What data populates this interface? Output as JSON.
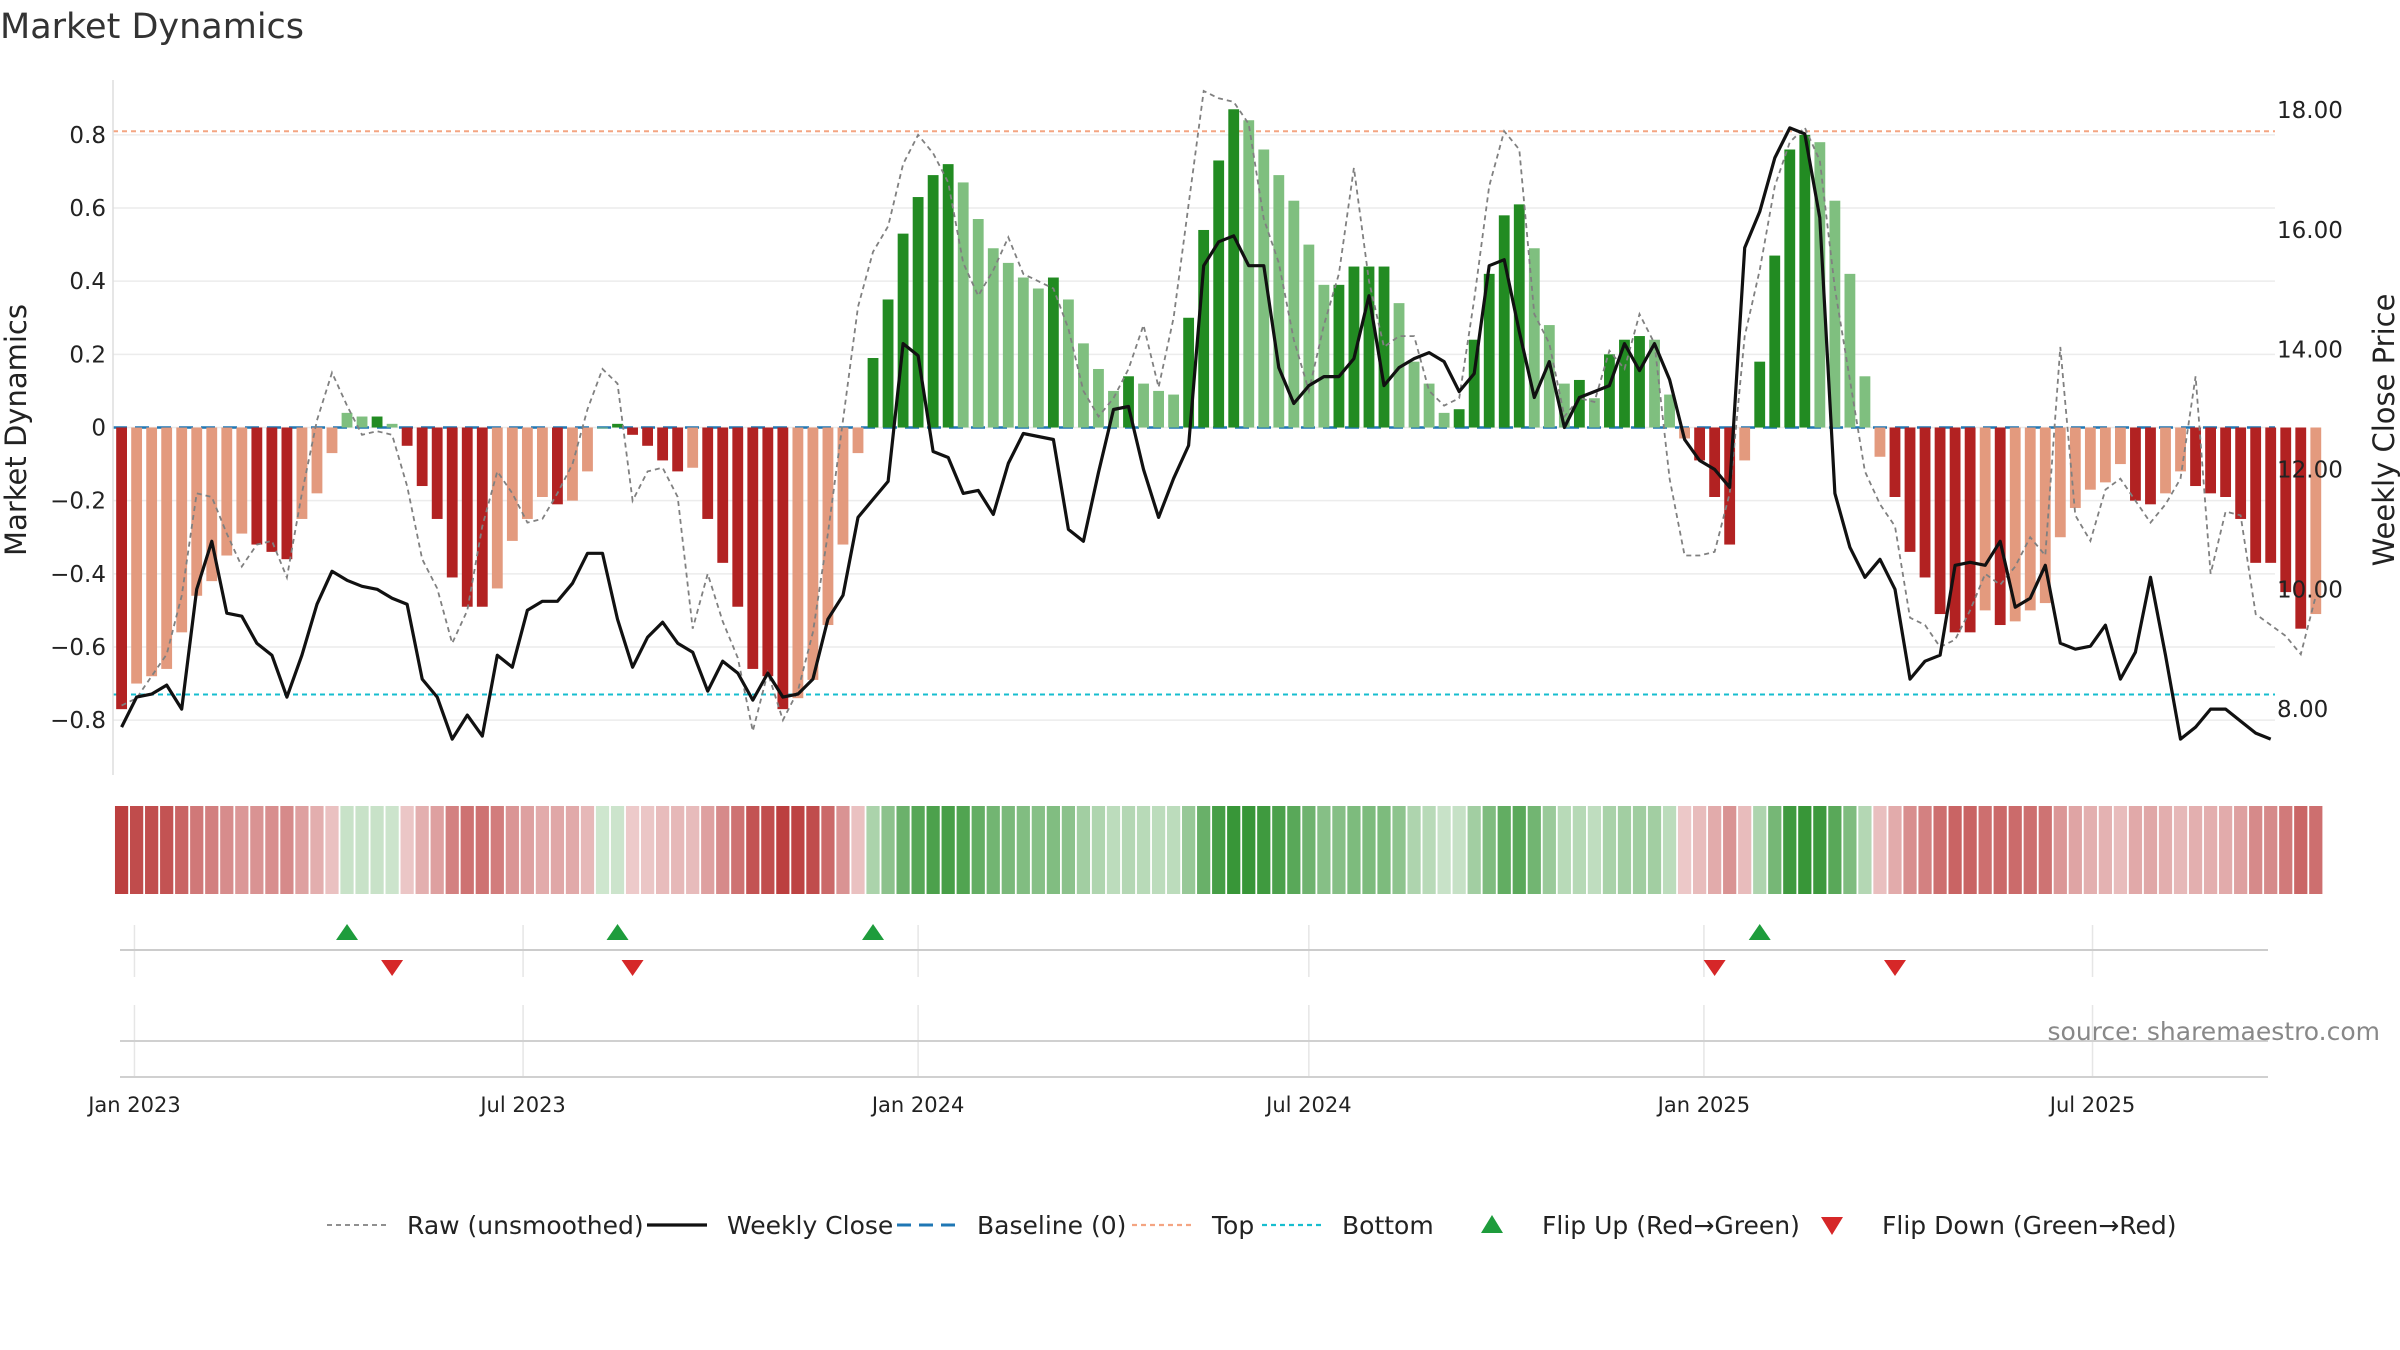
{
  "chart_data": {
    "type": "bar",
    "title": "Market Dynamics",
    "ylabel": "Market Dynamics",
    "y2label": "Weekly Close Price",
    "ylim": [
      -0.95,
      0.95
    ],
    "y2lim": [
      6.9,
      18.5
    ],
    "yticks": [
      "0.8",
      "0.6",
      "0.4",
      "0.2",
      "0",
      "−0.2",
      "−0.4",
      "−0.6",
      "−0.8"
    ],
    "y2ticks": [
      "18.00",
      "16.00",
      "14.00",
      "12.00",
      "10.00",
      "8.00"
    ],
    "x_start": "2022-12-26",
    "xlim": [
      "2022-12-22",
      "2025-09-24"
    ],
    "xtick_labels": [
      "Jan 2023",
      "Jul 2023",
      "Jan 2024",
      "Jul 2024",
      "Jan 2025",
      "Jul 2025"
    ],
    "xtick_dates": [
      "2023-01-01",
      "2023-07-01",
      "2024-01-01",
      "2024-07-01",
      "2025-01-01",
      "2025-07-01"
    ],
    "top_line": 0.81,
    "bottom_line": -0.73,
    "baseline": 0,
    "bar_values": [
      -0.77,
      -0.7,
      -0.68,
      -0.66,
      -0.56,
      -0.46,
      -0.42,
      -0.35,
      -0.29,
      -0.32,
      -0.34,
      -0.36,
      -0.25,
      -0.18,
      -0.07,
      0.04,
      0.03,
      0.03,
      0.01,
      -0.05,
      -0.16,
      -0.25,
      -0.41,
      -0.49,
      -0.49,
      -0.44,
      -0.31,
      -0.25,
      -0.19,
      -0.21,
      -0.2,
      -0.12,
      0.0,
      0.01,
      -0.02,
      -0.05,
      -0.09,
      -0.12,
      -0.11,
      -0.25,
      -0.37,
      -0.49,
      -0.66,
      -0.68,
      -0.77,
      -0.74,
      -0.69,
      -0.54,
      -0.32,
      -0.07,
      0.19,
      0.35,
      0.53,
      0.63,
      0.69,
      0.72,
      0.67,
      0.57,
      0.49,
      0.45,
      0.41,
      0.38,
      0.41,
      0.35,
      0.23,
      0.16,
      0.1,
      0.14,
      0.12,
      0.1,
      0.09,
      0.3,
      0.54,
      0.73,
      0.87,
      0.84,
      0.76,
      0.69,
      0.62,
      0.5,
      0.39,
      0.39,
      0.44,
      0.44,
      0.44,
      0.34,
      0.18,
      0.12,
      0.04,
      0.05,
      0.24,
      0.42,
      0.58,
      0.61,
      0.49,
      0.28,
      0.12,
      0.13,
      0.08,
      0.2,
      0.24,
      0.25,
      0.24,
      0.09,
      -0.03,
      -0.09,
      -0.19,
      -0.32,
      -0.09,
      0.18,
      0.47,
      0.76,
      0.8,
      0.78,
      0.62,
      0.42,
      0.14,
      -0.08,
      -0.19,
      -0.34,
      -0.41,
      -0.51,
      -0.56,
      -0.56,
      -0.5,
      -0.54,
      -0.53,
      -0.5,
      -0.48,
      -0.3,
      -0.22,
      -0.17,
      -0.15,
      -0.1,
      -0.2,
      -0.21,
      -0.18,
      -0.12,
      -0.16,
      -0.18,
      -0.19,
      -0.25,
      -0.37,
      -0.37,
      -0.45,
      -0.55,
      -0.51
    ],
    "raw_values": [
      -0.76,
      -0.74,
      -0.68,
      -0.62,
      -0.46,
      -0.18,
      -0.19,
      -0.29,
      -0.38,
      -0.32,
      -0.31,
      -0.41,
      -0.18,
      0.02,
      0.15,
      0.06,
      -0.02,
      -0.01,
      -0.02,
      -0.16,
      -0.36,
      -0.44,
      -0.59,
      -0.5,
      -0.27,
      -0.12,
      -0.18,
      -0.26,
      -0.25,
      -0.18,
      -0.1,
      0.05,
      0.16,
      0.12,
      -0.2,
      -0.12,
      -0.11,
      -0.19,
      -0.55,
      -0.4,
      -0.53,
      -0.63,
      -0.83,
      -0.67,
      -0.8,
      -0.72,
      -0.56,
      -0.29,
      0.02,
      0.33,
      0.48,
      0.55,
      0.72,
      0.8,
      0.75,
      0.67,
      0.45,
      0.36,
      0.43,
      0.52,
      0.42,
      0.4,
      0.38,
      0.27,
      0.1,
      0.03,
      0.08,
      0.16,
      0.28,
      0.11,
      0.3,
      0.61,
      0.92,
      0.9,
      0.89,
      0.83,
      0.57,
      0.45,
      0.24,
      0.1,
      0.28,
      0.42,
      0.71,
      0.4,
      0.22,
      0.25,
      0.25,
      0.1,
      0.06,
      0.08,
      0.35,
      0.66,
      0.81,
      0.76,
      0.31,
      0.23,
      0.03,
      0.08,
      0.07,
      0.21,
      0.16,
      0.31,
      0.23,
      -0.14,
      -0.35,
      -0.35,
      -0.34,
      -0.18,
      0.25,
      0.43,
      0.66,
      0.78,
      0.82,
      0.73,
      0.38,
      0.13,
      -0.12,
      -0.21,
      -0.27,
      -0.52,
      -0.54,
      -0.6,
      -0.58,
      -0.5,
      -0.4,
      -0.43,
      -0.38,
      -0.3,
      -0.35,
      0.22,
      -0.24,
      -0.31,
      -0.17,
      -0.14,
      -0.2,
      -0.26,
      -0.21,
      -0.14,
      0.14,
      -0.4,
      -0.23,
      -0.24,
      -0.51,
      -0.54,
      -0.57,
      -0.62,
      -0.46
    ],
    "close_values": [
      7.7,
      8.2,
      8.25,
      8.4,
      8.0,
      10.0,
      10.8,
      9.6,
      9.55,
      9.1,
      8.9,
      8.2,
      8.9,
      9.75,
      10.3,
      10.15,
      10.05,
      10.0,
      9.85,
      9.75,
      8.5,
      8.2,
      7.5,
      7.9,
      7.55,
      8.9,
      8.7,
      9.65,
      9.8,
      9.8,
      10.1,
      10.6,
      10.6,
      9.5,
      8.7,
      9.2,
      9.45,
      9.1,
      8.95,
      8.3,
      8.8,
      8.6,
      8.15,
      8.6,
      8.2,
      8.25,
      8.5,
      9.5,
      9.9,
      11.2,
      11.5,
      11.8,
      14.1,
      13.9,
      12.3,
      12.2,
      11.6,
      11.65,
      11.25,
      12.1,
      12.6,
      12.55,
      12.5,
      11.0,
      10.8,
      11.95,
      13.0,
      13.05,
      12.0,
      11.2,
      11.85,
      12.4,
      15.4,
      15.8,
      15.9,
      15.4,
      15.4,
      13.7,
      13.1,
      13.4,
      13.55,
      13.55,
      13.85,
      14.9,
      13.4,
      13.7,
      13.85,
      13.95,
      13.8,
      13.3,
      13.6,
      15.4,
      15.5,
      14.3,
      13.2,
      13.8,
      12.7,
      13.2,
      13.3,
      13.4,
      14.1,
      13.65,
      14.1,
      13.5,
      12.5,
      12.15,
      12.0,
      11.7,
      15.7,
      16.3,
      17.2,
      17.7,
      17.6,
      16.2,
      11.6,
      10.7,
      10.2,
      10.5,
      10.0,
      8.5,
      8.8,
      8.9,
      10.4,
      10.45,
      10.4,
      10.8,
      9.7,
      9.85,
      10.4,
      9.1,
      9.0,
      9.05,
      9.4,
      8.5,
      8.95,
      10.2,
      8.9,
      7.5,
      7.7,
      8.0,
      8.0,
      7.8,
      7.6,
      7.5
    ],
    "flip_up_index": [
      15,
      33,
      50,
      109
    ],
    "flip_down_index": [
      18,
      34,
      106,
      118
    ],
    "series": [
      {
        "name": "Raw (unsmoothed)"
      },
      {
        "name": "Weekly Close"
      },
      {
        "name": "Baseline (0)"
      },
      {
        "name": "Top"
      },
      {
        "name": "Bottom"
      },
      {
        "name": "Flip Up (Red→Green)"
      },
      {
        "name": "Flip Down (Green→Red)"
      }
    ],
    "legend_position": "bottom",
    "grid": true,
    "source": "source: sharemaestro.com"
  },
  "colors": {
    "pos_strong": "#228b22",
    "pos_weak": "#7fbf7f",
    "neg_strong": "#b22222",
    "neg_weak": "#e39a7e",
    "close_line": "#111111",
    "raw_line": "#808080",
    "baseline": "#1f77b4",
    "top": "#f4a582",
    "bottom": "#17becf",
    "flip_up": "#1e9c3c",
    "flip_down": "#d62728"
  }
}
